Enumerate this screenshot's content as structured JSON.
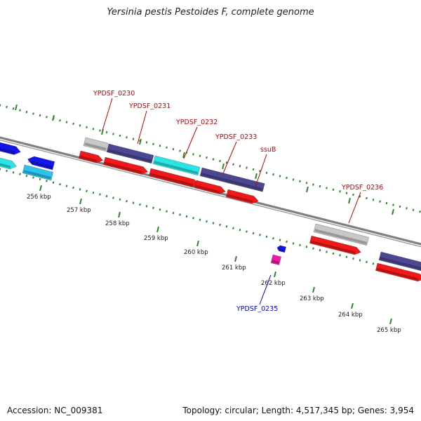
{
  "title": "Yersinia pestis Pestoides F, complete genome",
  "footer": {
    "accession": "Accession: NC_009381",
    "summary": "Topology: circular; Length: 4,517,345 bp; Genes: 3,954"
  },
  "ticks": [
    {
      "label": "256 kbp",
      "kbp": 256
    },
    {
      "label": "257 kbp",
      "kbp": 257
    },
    {
      "label": "258 kbp",
      "kbp": 258
    },
    {
      "label": "259 kbp",
      "kbp": 259
    },
    {
      "label": "260 kbp",
      "kbp": 260
    },
    {
      "label": "261 kbp",
      "kbp": 261
    },
    {
      "label": "262 kbp",
      "kbp": 262
    },
    {
      "label": "263 kbp",
      "kbp": 263
    },
    {
      "label": "264 kbp",
      "kbp": 264
    },
    {
      "label": "265 kbp",
      "kbp": 265
    }
  ],
  "gene_labels": [
    {
      "text": "YPDSF_0230",
      "color": "#cc0000"
    },
    {
      "text": "YPDSF_0231",
      "color": "#cc0000"
    },
    {
      "text": "YPDSF_0232",
      "color": "#cc0000"
    },
    {
      "text": "YPDSF_0233",
      "color": "#cc0000"
    },
    {
      "text": "ssuB",
      "color": "#cc0000"
    },
    {
      "text": "YPDSF_0236",
      "color": "#cc0000"
    },
    {
      "text": "YPDSF_0235",
      "color": "#0000cc"
    }
  ],
  "colors": {
    "tick": "#2a8a2a",
    "backbone": "#808080",
    "gray": "#c8c8c8",
    "navy": "#4b4891",
    "cyan": "#29e5e5",
    "red": "#f01818",
    "blue": "#1414ee",
    "lightblue": "#2cc4ee",
    "magenta": "#ee1ca4"
  }
}
